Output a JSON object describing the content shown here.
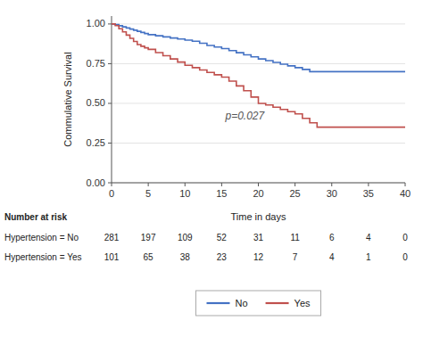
{
  "chart_data": {
    "type": "line",
    "line_style": "step",
    "ylabel": "Commulative Survival",
    "xlabel": "Time in days",
    "xlim": [
      0,
      40
    ],
    "ylim": [
      0.0,
      1.05
    ],
    "xticks": [
      0,
      5,
      10,
      15,
      20,
      25,
      30,
      35,
      40
    ],
    "yticks": [
      {
        "value": 0.0,
        "label": "0.00"
      },
      {
        "value": 0.25,
        "label": "0.25"
      },
      {
        "value": 0.5,
        "label": "0.50"
      },
      {
        "value": 0.75,
        "label": "0.75"
      },
      {
        "value": 1.0,
        "label": "1.00"
      }
    ],
    "grid": true,
    "legend": "bottom",
    "annotations": [
      {
        "text": "p=0.027",
        "x": 15.5,
        "y": 0.4
      }
    ],
    "series": [
      {
        "name": "No",
        "color": "#4472C4",
        "x": [
          0,
          0.5,
          1,
          1.5,
          2,
          2.5,
          3,
          3.5,
          4,
          4.5,
          5,
          6,
          7,
          8,
          9,
          10,
          11,
          12,
          13,
          14,
          15,
          16,
          17,
          18,
          19,
          20,
          21,
          22,
          23,
          24,
          25,
          26,
          27,
          36,
          40
        ],
        "values": [
          1.0,
          0.996,
          0.989,
          0.982,
          0.975,
          0.968,
          0.961,
          0.954,
          0.947,
          0.94,
          0.933,
          0.926,
          0.919,
          0.912,
          0.905,
          0.898,
          0.891,
          0.879,
          0.865,
          0.855,
          0.845,
          0.832,
          0.819,
          0.806,
          0.793,
          0.78,
          0.769,
          0.758,
          0.747,
          0.736,
          0.725,
          0.714,
          0.7,
          0.7,
          0.7
        ]
      },
      {
        "name": "Yes",
        "color": "#C0504D",
        "x": [
          0,
          0.5,
          1,
          1.5,
          2,
          2.5,
          3,
          3.5,
          4,
          4.5,
          5,
          6,
          7,
          8,
          9,
          10,
          11,
          12,
          13,
          14,
          15,
          16,
          17,
          18,
          19,
          20,
          21,
          22,
          23,
          24,
          25,
          26,
          27,
          28,
          36,
          40
        ],
        "values": [
          1.0,
          0.99,
          0.97,
          0.95,
          0.93,
          0.91,
          0.89,
          0.87,
          0.86,
          0.85,
          0.84,
          0.82,
          0.8,
          0.78,
          0.76,
          0.74,
          0.725,
          0.71,
          0.695,
          0.68,
          0.665,
          0.64,
          0.61,
          0.58,
          0.54,
          0.5,
          0.49,
          0.476,
          0.462,
          0.448,
          0.434,
          0.406,
          0.378,
          0.35,
          0.35,
          0.35
        ]
      }
    ],
    "risk_table": {
      "label": "Number at risk",
      "times": [
        0,
        5,
        10,
        15,
        20,
        25,
        30,
        35,
        40
      ],
      "rows": [
        {
          "name": "Hypertension = No",
          "values": [
            281,
            197,
            109,
            52,
            31,
            11,
            6,
            4,
            0
          ]
        },
        {
          "name": "Hypertension = Yes",
          "values": [
            101,
            65,
            38,
            23,
            12,
            7,
            4,
            1,
            0
          ]
        }
      ]
    }
  }
}
